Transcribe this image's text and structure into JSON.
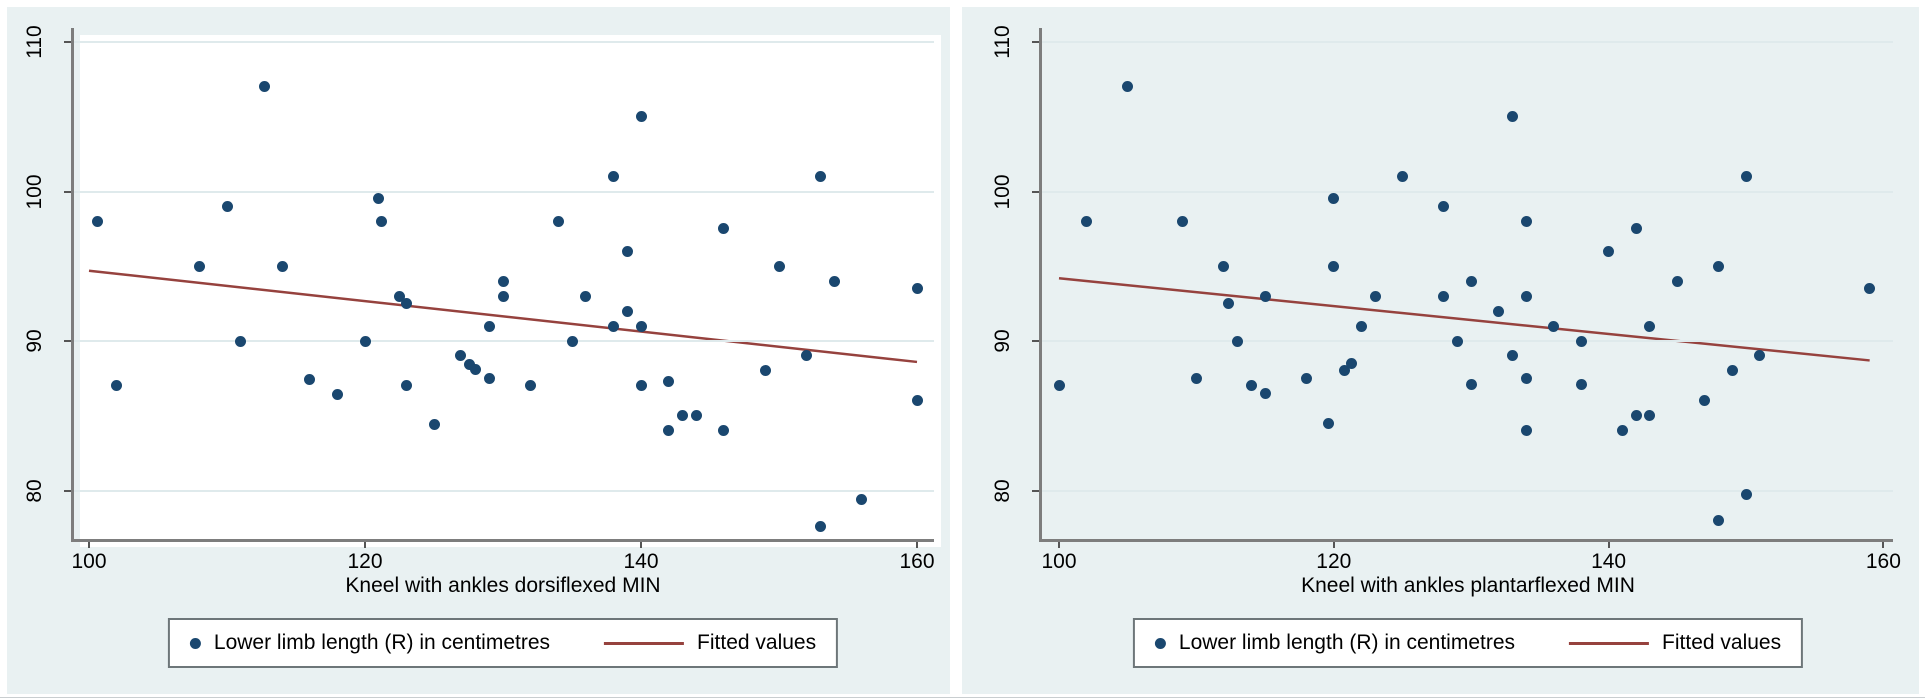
{
  "figure": {
    "panel_background": "#e9f1f2",
    "plot_background": "#ffffff",
    "grid_color": "#dfeaec",
    "axis_color": "#7d7d7d",
    "tick_color": "#555555",
    "text_color": "#000000",
    "dot_color": "#1a476f",
    "fit_line_color": "#96423e",
    "legend_border_color": "#6d7679"
  },
  "chart_data": [
    {
      "type": "scatter",
      "title": "",
      "xlabel": "Kneel with ankles dorsiflexed MIN",
      "ylabel": "",
      "x_ticks": [
        100,
        120,
        140,
        160
      ],
      "y_ticks": [
        80,
        90,
        100,
        110
      ],
      "xlim": [
        99,
        161
      ],
      "ylim": [
        76.5,
        111
      ],
      "grid": "horizontal",
      "legend": [
        "Lower limb length (R) in centimetres",
        "Fitted values"
      ],
      "legend_position": "bottom-center",
      "series": [
        {
          "name": "Lower limb length (R) in centimetres",
          "type": "scatter",
          "points": [
            [
              100.6,
              98
            ],
            [
              102,
              87
            ],
            [
              108,
              95
            ],
            [
              110,
              99
            ],
            [
              111,
              90
            ],
            [
              112.7,
              107
            ],
            [
              114,
              95
            ],
            [
              116,
              87.4
            ],
            [
              118,
              86.4
            ],
            [
              120,
              90
            ],
            [
              121,
              99.5
            ],
            [
              121.2,
              98
            ],
            [
              122.5,
              93
            ],
            [
              123,
              92.5
            ],
            [
              123,
              87
            ],
            [
              125,
              84.4
            ],
            [
              126.9,
              89
            ],
            [
              127.6,
              88.4
            ],
            [
              128,
              88.1
            ],
            [
              129,
              91
            ],
            [
              129,
              87.5
            ],
            [
              130,
              94
            ],
            [
              130,
              93
            ],
            [
              132,
              87
            ],
            [
              134,
              98
            ],
            [
              135,
              90
            ],
            [
              136,
              93
            ],
            [
              138,
              101
            ],
            [
              138,
              91
            ],
            [
              139,
              96
            ],
            [
              139,
              92
            ],
            [
              140,
              105
            ],
            [
              140,
              91
            ],
            [
              140,
              87
            ],
            [
              142,
              87.3
            ],
            [
              142,
              84
            ],
            [
              143,
              85
            ],
            [
              144,
              85
            ],
            [
              146,
              97.5
            ],
            [
              146,
              84
            ],
            [
              149,
              88
            ],
            [
              150,
              95
            ],
            [
              152,
              89
            ],
            [
              153,
              101
            ],
            [
              153,
              77.6
            ],
            [
              154,
              94
            ],
            [
              156,
              79.4
            ],
            [
              160,
              93.5
            ],
            [
              160,
              86
            ]
          ]
        },
        {
          "name": "Fitted values",
          "type": "line",
          "points": [
            [
              100,
              94.7
            ],
            [
              160,
              88.6
            ]
          ]
        }
      ]
    },
    {
      "type": "scatter",
      "title": "",
      "xlabel": "Kneel with ankles plantarflexed MIN",
      "ylabel": "",
      "x_ticks": [
        100,
        120,
        140,
        160
      ],
      "y_ticks": [
        80,
        90,
        100,
        110
      ],
      "xlim": [
        99,
        161
      ],
      "ylim": [
        76.5,
        111
      ],
      "grid": "horizontal",
      "legend": [
        "Lower limb length (R) in centimetres",
        "Fitted values"
      ],
      "legend_position": "bottom-center",
      "series": [
        {
          "name": "Lower limb length (R) in centimetres",
          "type": "scatter",
          "points": [
            [
              100,
              87
            ],
            [
              102,
              98
            ],
            [
              105,
              107
            ],
            [
              109,
              98
            ],
            [
              110,
              87.5
            ],
            [
              112,
              95
            ],
            [
              112.3,
              92.5
            ],
            [
              113,
              90
            ],
            [
              114,
              87
            ],
            [
              115,
              93
            ],
            [
              115,
              86.5
            ],
            [
              118,
              87.5
            ],
            [
              119.6,
              84.5
            ],
            [
              120,
              99.5
            ],
            [
              120,
              95
            ],
            [
              120.8,
              88
            ],
            [
              121.3,
              88.5
            ],
            [
              122,
              91
            ],
            [
              123,
              93
            ],
            [
              125,
              101
            ],
            [
              128,
              99
            ],
            [
              128,
              93
            ],
            [
              129,
              90
            ],
            [
              130,
              94
            ],
            [
              130,
              87.1
            ],
            [
              132,
              92
            ],
            [
              133,
              105
            ],
            [
              133,
              89
            ],
            [
              134,
              98
            ],
            [
              134,
              93
            ],
            [
              134,
              87.5
            ],
            [
              134,
              84
            ],
            [
              136,
              91
            ],
            [
              138,
              90
            ],
            [
              138,
              87.1
            ],
            [
              140,
              96
            ],
            [
              141,
              84
            ],
            [
              142,
              97.5
            ],
            [
              142,
              85
            ],
            [
              143,
              85
            ],
            [
              143,
              91
            ],
            [
              145,
              94
            ],
            [
              147,
              86
            ],
            [
              148,
              95
            ],
            [
              148,
              78
            ],
            [
              149,
              88
            ],
            [
              150,
              101
            ],
            [
              150,
              79.7
            ],
            [
              151,
              89
            ],
            [
              159,
              93.5
            ]
          ]
        },
        {
          "name": "Fitted values",
          "type": "line",
          "points": [
            [
              100,
              94.2
            ],
            [
              159,
              88.7
            ]
          ]
        }
      ]
    }
  ]
}
